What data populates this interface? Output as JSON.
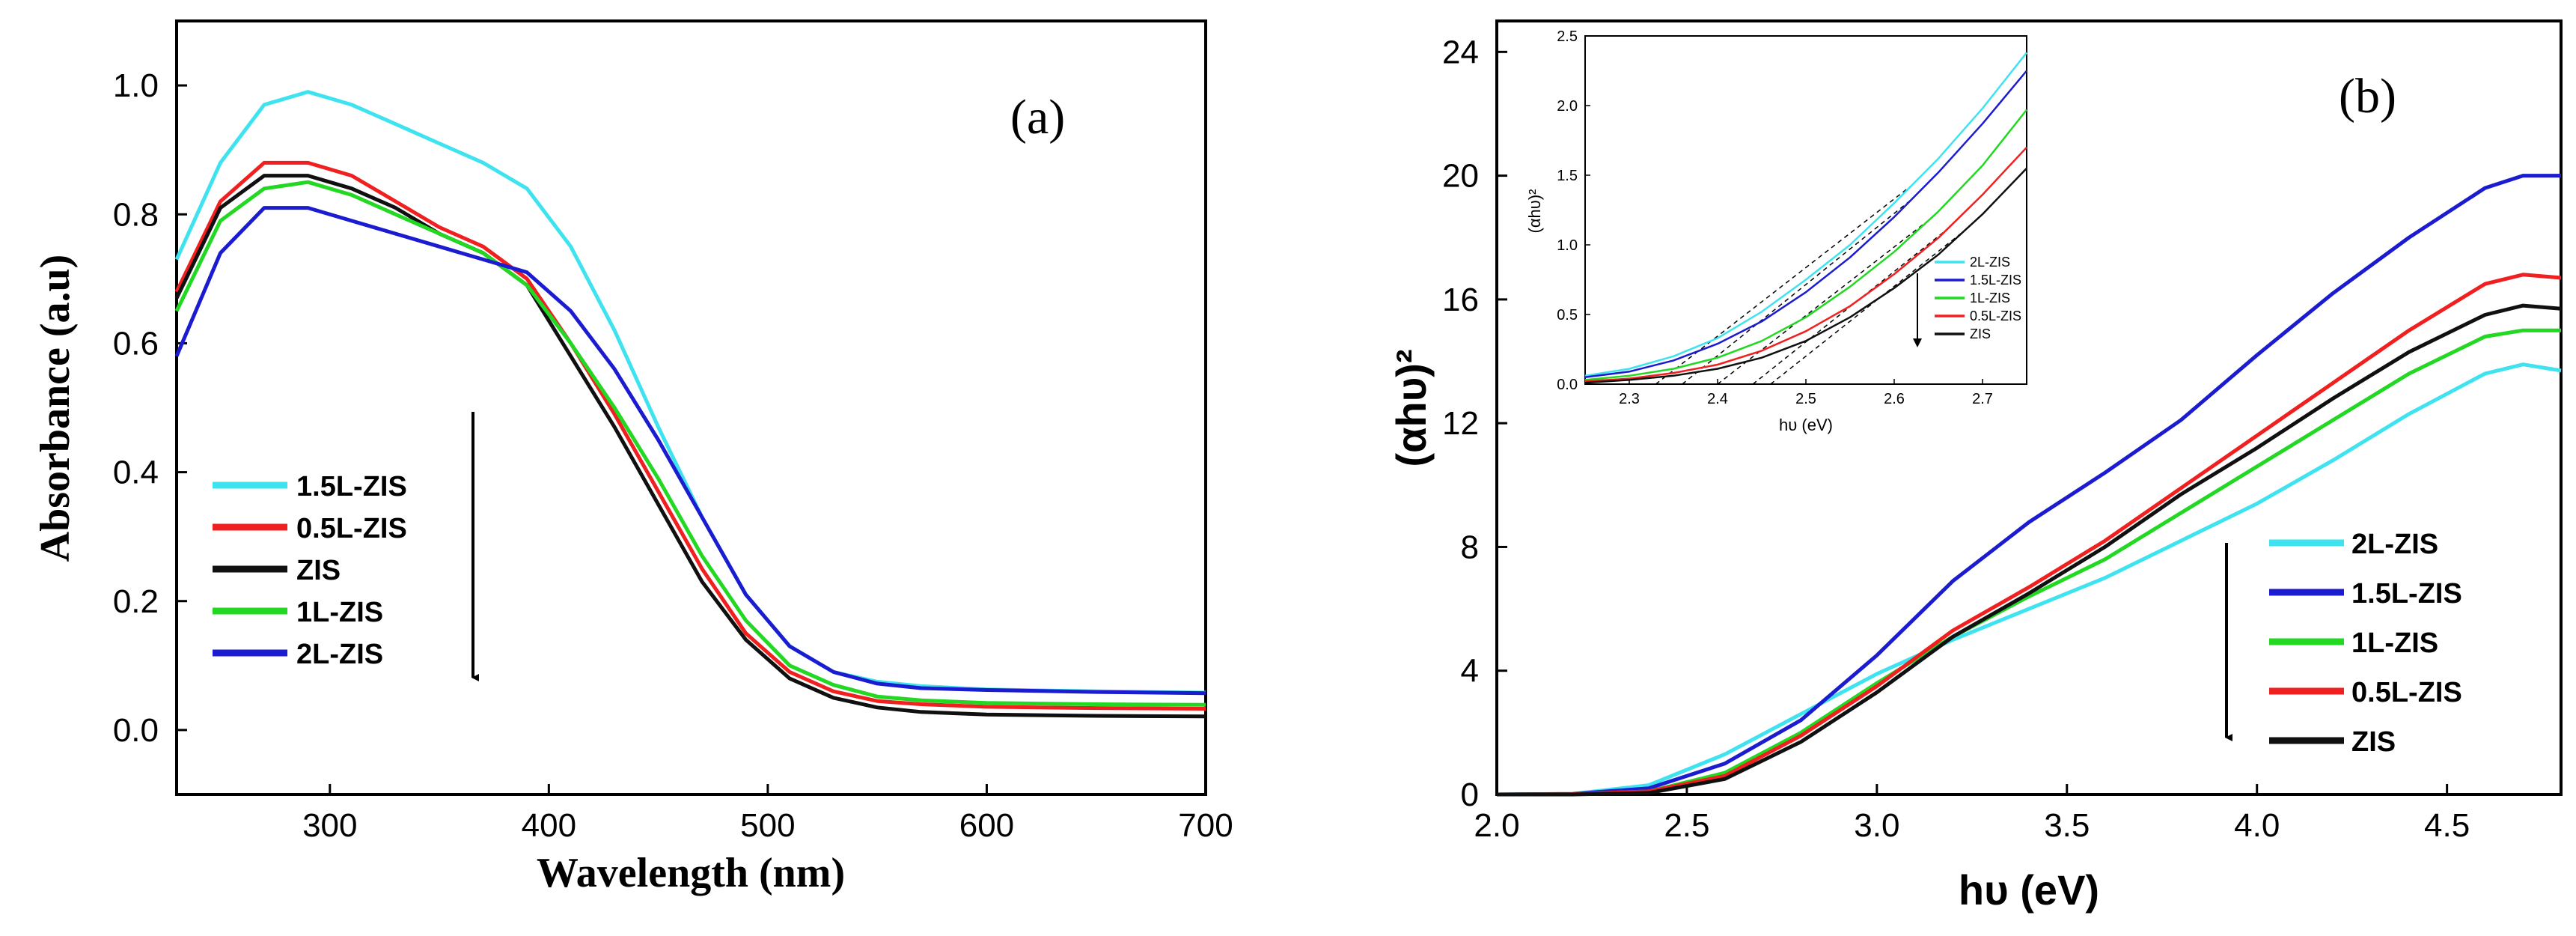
{
  "colors": {
    "cyan": "#3fe3f0",
    "red": "#f02020",
    "black": "#101010",
    "green": "#22d822",
    "blue": "#1b1bd0"
  },
  "chart_data": [
    {
      "id": "a",
      "type": "line",
      "panel_label": "(a)",
      "xlabel": "Wavelength (nm)",
      "ylabel": "Absorbance (a.u)",
      "xlim": [
        230,
        700
      ],
      "ylim": [
        -0.1,
        1.1
      ],
      "xticks": [
        300,
        400,
        500,
        600,
        700
      ],
      "yticks": [
        0.0,
        0.2,
        0.4,
        0.6,
        0.8,
        1.0
      ],
      "legend_position": "bottom-left",
      "legend_arrow": "down",
      "x": [
        230,
        250,
        270,
        290,
        310,
        330,
        350,
        370,
        390,
        410,
        430,
        450,
        470,
        490,
        510,
        530,
        550,
        570,
        600,
        650,
        700
      ],
      "series": [
        {
          "name": "1.5L-ZIS",
          "color_key": "cyan",
          "values": [
            0.73,
            0.88,
            0.97,
            0.99,
            0.97,
            0.94,
            0.91,
            0.88,
            0.84,
            0.75,
            0.62,
            0.47,
            0.33,
            0.21,
            0.13,
            0.09,
            0.075,
            0.068,
            0.063,
            0.06,
            0.058
          ]
        },
        {
          "name": "0.5L-ZIS",
          "color_key": "red",
          "values": [
            0.68,
            0.82,
            0.88,
            0.88,
            0.86,
            0.82,
            0.78,
            0.75,
            0.7,
            0.6,
            0.49,
            0.37,
            0.25,
            0.15,
            0.09,
            0.06,
            0.045,
            0.04,
            0.036,
            0.034,
            0.033
          ]
        },
        {
          "name": "ZIS",
          "color_key": "black",
          "values": [
            0.67,
            0.81,
            0.86,
            0.86,
            0.84,
            0.81,
            0.77,
            0.74,
            0.69,
            0.58,
            0.47,
            0.35,
            0.23,
            0.14,
            0.08,
            0.05,
            0.035,
            0.028,
            0.024,
            0.022,
            0.021
          ]
        },
        {
          "name": "1L-ZIS",
          "color_key": "green",
          "values": [
            0.65,
            0.79,
            0.84,
            0.85,
            0.83,
            0.8,
            0.77,
            0.74,
            0.69,
            0.6,
            0.5,
            0.39,
            0.27,
            0.17,
            0.1,
            0.07,
            0.052,
            0.046,
            0.042,
            0.04,
            0.039
          ]
        },
        {
          "name": "2L-ZIS",
          "color_key": "blue",
          "values": [
            0.58,
            0.74,
            0.81,
            0.81,
            0.79,
            0.77,
            0.75,
            0.73,
            0.71,
            0.65,
            0.56,
            0.45,
            0.33,
            0.21,
            0.13,
            0.09,
            0.072,
            0.065,
            0.062,
            0.059,
            0.057
          ]
        }
      ]
    },
    {
      "id": "b",
      "type": "line",
      "panel_label": "(b)",
      "xlabel": "hυ (eV)",
      "ylabel": "(αhυ)²",
      "xlim": [
        2.0,
        4.8
      ],
      "ylim": [
        0,
        25
      ],
      "xticks": [
        2.0,
        2.5,
        3.0,
        3.5,
        4.0,
        4.5
      ],
      "yticks": [
        0,
        4,
        8,
        12,
        16,
        20,
        24
      ],
      "legend_position": "bottom-right",
      "legend_arrow": "down",
      "x": [
        2.0,
        2.2,
        2.4,
        2.6,
        2.8,
        3.0,
        3.2,
        3.4,
        3.6,
        3.8,
        4.0,
        4.2,
        4.4,
        4.6,
        4.7,
        4.8
      ],
      "series": [
        {
          "name": "2L-ZIS",
          "color_key": "cyan",
          "values": [
            0,
            0.02,
            0.3,
            1.3,
            2.6,
            3.9,
            5.0,
            6.0,
            7.0,
            8.2,
            9.4,
            10.8,
            12.3,
            13.6,
            13.9,
            13.7
          ]
        },
        {
          "name": "1.5L-ZIS",
          "color_key": "blue",
          "values": [
            0,
            0.02,
            0.2,
            1.0,
            2.4,
            4.5,
            6.9,
            8.8,
            10.4,
            12.1,
            14.2,
            16.2,
            18.0,
            19.6,
            20.0,
            20.0
          ]
        },
        {
          "name": "1L-ZIS",
          "color_key": "green",
          "values": [
            0,
            0.01,
            0.1,
            0.7,
            2.0,
            3.6,
            5.1,
            6.4,
            7.6,
            9.1,
            10.6,
            12.1,
            13.6,
            14.8,
            15.0,
            15.0
          ]
        },
        {
          "name": "0.5L-ZIS",
          "color_key": "red",
          "values": [
            0,
            0.01,
            0.1,
            0.6,
            1.9,
            3.5,
            5.3,
            6.7,
            8.2,
            9.9,
            11.6,
            13.3,
            15.0,
            16.5,
            16.8,
            16.7
          ]
        },
        {
          "name": "ZIS",
          "color_key": "black",
          "values": [
            0,
            0.0,
            0.05,
            0.5,
            1.7,
            3.3,
            5.1,
            6.5,
            8.0,
            9.7,
            11.2,
            12.8,
            14.3,
            15.5,
            15.8,
            15.7
          ]
        }
      ],
      "inset": {
        "xlabel": "hυ (eV)",
        "ylabel": "(αhυ)²",
        "xlim": [
          2.25,
          2.75
        ],
        "ylim": [
          0,
          2.5
        ],
        "xticks": [
          2.3,
          2.4,
          2.5,
          2.6,
          2.7
        ],
        "yticks": [
          0.0,
          0.5,
          1.0,
          1.5,
          2.0,
          2.5
        ],
        "legend_position": "right",
        "legend_arrow": "down",
        "x": [
          2.25,
          2.3,
          2.35,
          2.4,
          2.45,
          2.5,
          2.55,
          2.6,
          2.65,
          2.7,
          2.75
        ],
        "series": [
          {
            "name": "2L-ZIS",
            "color_key": "cyan",
            "values": [
              0.06,
              0.11,
              0.2,
              0.33,
              0.52,
              0.75,
              1.0,
              1.3,
              1.62,
              1.98,
              2.38
            ]
          },
          {
            "name": "1.5L-ZIS",
            "color_key": "blue",
            "values": [
              0.05,
              0.09,
              0.17,
              0.29,
              0.45,
              0.66,
              0.91,
              1.2,
              1.52,
              1.87,
              2.25
            ]
          },
          {
            "name": "1L-ZIS",
            "color_key": "green",
            "values": [
              0.03,
              0.06,
              0.11,
              0.19,
              0.31,
              0.48,
              0.7,
              0.95,
              1.24,
              1.57,
              1.97
            ]
          },
          {
            "name": "0.5L-ZIS",
            "color_key": "red",
            "values": [
              0.02,
              0.04,
              0.08,
              0.14,
              0.24,
              0.38,
              0.56,
              0.79,
              1.05,
              1.36,
              1.7
            ]
          },
          {
            "name": "ZIS",
            "color_key": "black",
            "values": [
              0.01,
              0.03,
              0.06,
              0.11,
              0.19,
              0.31,
              0.48,
              0.69,
              0.93,
              1.22,
              1.55
            ]
          }
        ],
        "tangents": [
          {
            "series": "2L-ZIS",
            "x": [
              2.33,
              2.62
            ]
          },
          {
            "series": "1.5L-ZIS",
            "x": [
              2.36,
              2.62
            ]
          },
          {
            "series": "1L-ZIS",
            "x": [
              2.4,
              2.64
            ]
          },
          {
            "series": "0.5L-ZIS",
            "x": [
              2.44,
              2.66
            ]
          },
          {
            "series": "ZIS",
            "x": [
              2.46,
              2.68
            ]
          }
        ]
      }
    }
  ]
}
